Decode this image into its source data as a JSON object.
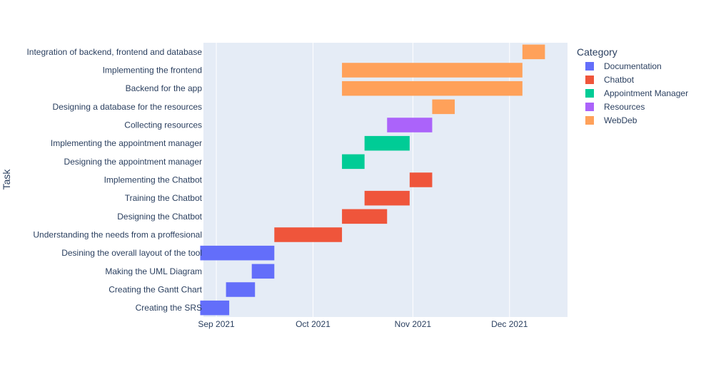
{
  "chart_data": {
    "type": "bar",
    "orientation": "horizontal-timeline",
    "ylabel": "Task",
    "legend": {
      "title": "Category",
      "placement": "right",
      "entries": [
        {
          "name": "Documentation",
          "color": "#636efa"
        },
        {
          "name": "Chatbot",
          "color": "#EF553B"
        },
        {
          "name": "Appointment Manager",
          "color": "#00cc96"
        },
        {
          "name": "Resources",
          "color": "#ab63fa"
        },
        {
          "name": "WebDeb",
          "color": "#FFA15A"
        }
      ]
    },
    "x_ticks": [
      {
        "label": "Sep 2021",
        "date": "2021-09-01"
      },
      {
        "label": "Oct 2021",
        "date": "2021-10-01"
      },
      {
        "label": "Nov 2021",
        "date": "2021-11-01"
      },
      {
        "label": "Dec 2021",
        "date": "2021-12-01"
      }
    ],
    "xlim": [
      "2021-08-28",
      "2021-12-19"
    ],
    "grid": true,
    "plot_background": "#E5ECF6",
    "tasks": [
      {
        "task": "Creating the SRS",
        "start": "2021-08-27",
        "end": "2021-09-05",
        "category": "Documentation"
      },
      {
        "task": "Creating the Gantt Chart",
        "start": "2021-09-04",
        "end": "2021-09-13",
        "category": "Documentation"
      },
      {
        "task": "Making the UML Diagram",
        "start": "2021-09-12",
        "end": "2021-09-19",
        "category": "Documentation"
      },
      {
        "task": "Desining the overall layout of the tool",
        "start": "2021-08-27",
        "end": "2021-09-19",
        "category": "Documentation"
      },
      {
        "task": "Understanding the needs from a proffesional",
        "start": "2021-09-19",
        "end": "2021-10-10",
        "category": "Chatbot"
      },
      {
        "task": "Designing the Chatbot",
        "start": "2021-10-10",
        "end": "2021-10-24",
        "category": "Chatbot"
      },
      {
        "task": "Training the Chatbot",
        "start": "2021-10-17",
        "end": "2021-10-31",
        "category": "Chatbot"
      },
      {
        "task": "Implementing the Chatbot",
        "start": "2021-10-31",
        "end": "2021-11-07",
        "category": "Chatbot"
      },
      {
        "task": "Designing the appointment manager",
        "start": "2021-10-10",
        "end": "2021-10-17",
        "category": "Appointment Manager"
      },
      {
        "task": "Implementing the appointment manager",
        "start": "2021-10-17",
        "end": "2021-10-31",
        "category": "Appointment Manager"
      },
      {
        "task": "Collecting resources",
        "start": "2021-10-24",
        "end": "2021-11-07",
        "category": "Resources"
      },
      {
        "task": "Designing a database for the resources",
        "start": "2021-11-07",
        "end": "2021-11-14",
        "category": "WebDeb"
      },
      {
        "task": "Backend for the app",
        "start": "2021-10-10",
        "end": "2021-12-05",
        "category": "WebDeb"
      },
      {
        "task": "Implementing the frontend",
        "start": "2021-10-10",
        "end": "2021-12-05",
        "category": "WebDeb"
      },
      {
        "task": "Integration of backend, frontend and database",
        "start": "2021-12-05",
        "end": "2021-12-12",
        "category": "WebDeb"
      }
    ]
  }
}
